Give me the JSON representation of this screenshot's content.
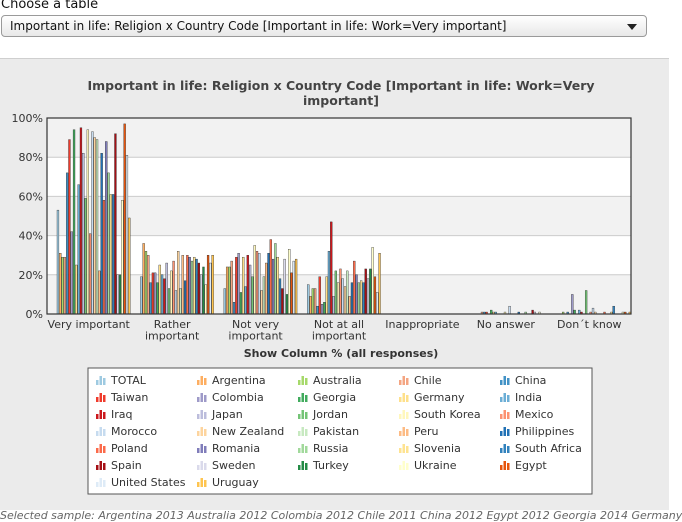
{
  "choose_label": "Choose a table",
  "select": {
    "value": "Important in life: Religion x Country Code [Important in life: Work=Very important]"
  },
  "sample_note": "Selected sample: Argentina 2013 Australia 2012 Colombia 2012 Chile 2011 China 2012 Egypt 2012 Georgia 2014 Germany",
  "colors": {
    "panel_bg": "#ebebeb",
    "plot_bg": "#ffffff",
    "band": "#f2f2f2",
    "title": "#444444",
    "axis_text": "#333333"
  },
  "chart_data": {
    "type": "bar",
    "title": "Important in life: Religion x Country Code [Important in life: Work=Very important]",
    "title_lines": [
      "Important in life: Religion x Country Code [Important in life: Work=Very",
      "important]"
    ],
    "xlabel": "Show Column % (all responses)",
    "ylabel": "",
    "ylim": [
      0,
      100
    ],
    "ytick_labels": [
      "0%",
      "20%",
      "40%",
      "60%",
      "80%",
      "100%"
    ],
    "yticks": [
      0,
      20,
      40,
      60,
      80,
      100
    ],
    "grid": true,
    "legend_position": "bottom",
    "categories": [
      "Very important",
      "Rather important",
      "Not very important",
      "Not at all important",
      "Inappropriate",
      "No answer",
      "Don´t know"
    ],
    "category_label_lines": [
      [
        "Very important"
      ],
      [
        "Rather",
        "important"
      ],
      [
        "Not very",
        "important"
      ],
      [
        "Not at all",
        "important"
      ],
      [
        "Inappropriate"
      ],
      [
        "No answer"
      ],
      [
        "Don´t know"
      ]
    ],
    "series": [
      {
        "name": "TOTAL",
        "color": "#9ecae1",
        "values": [
          53,
          19,
          13,
          15,
          0,
          0,
          0
        ]
      },
      {
        "name": "Argentina",
        "color": "#fdae61",
        "values": [
          31,
          36,
          24,
          9,
          0,
          0,
          0
        ]
      },
      {
        "name": "Australia",
        "color": "#a6d96a",
        "values": [
          29,
          32,
          24,
          13,
          0,
          0,
          1
        ]
      },
      {
        "name": "Chile",
        "color": "#f4a582",
        "values": [
          29,
          30,
          27,
          13,
          0,
          1,
          0
        ]
      },
      {
        "name": "China",
        "color": "#4292c6",
        "values": [
          72,
          16,
          6,
          4,
          0,
          1,
          1
        ]
      },
      {
        "name": "Taiwan",
        "color": "#ef3b2c",
        "values": [
          89,
          21,
          29,
          19,
          0,
          1,
          0
        ]
      },
      {
        "name": "Colombia",
        "color": "#9e9ac8",
        "values": [
          42,
          21,
          31,
          5,
          0,
          0,
          10
        ]
      },
      {
        "name": "Georgia",
        "color": "#41ab5d",
        "values": [
          94,
          16,
          11,
          6,
          0,
          2,
          2
        ]
      },
      {
        "name": "Germany",
        "color": "#fee08b",
        "values": [
          25,
          25,
          29,
          19,
          0,
          1,
          0
        ]
      },
      {
        "name": "India",
        "color": "#6baed6",
        "values": [
          66,
          20,
          14,
          32,
          0,
          1,
          2
        ]
      },
      {
        "name": "Iraq",
        "color": "#cb181d",
        "values": [
          95,
          18,
          30,
          47,
          0,
          0,
          1
        ]
      },
      {
        "name": "Japan",
        "color": "#bcbddc",
        "values": [
          82,
          26,
          25,
          9,
          0,
          0,
          0
        ]
      },
      {
        "name": "Jordan",
        "color": "#74c476",
        "values": [
          59,
          13,
          19,
          22,
          0,
          0,
          12
        ]
      },
      {
        "name": "South Korea",
        "color": "#fff7bc",
        "values": [
          94,
          22,
          35,
          16,
          0,
          1,
          0
        ]
      },
      {
        "name": "Mexico",
        "color": "#fc9272",
        "values": [
          41,
          27,
          32,
          23,
          0,
          0,
          1
        ]
      },
      {
        "name": "Morocco",
        "color": "#c6dbef",
        "values": [
          93,
          12,
          31,
          18,
          0,
          4,
          3
        ]
      },
      {
        "name": "New Zealand",
        "color": "#fdd49e",
        "values": [
          90,
          32,
          12,
          14,
          0,
          0,
          1
        ]
      },
      {
        "name": "Pakistan",
        "color": "#c7e9c0",
        "values": [
          89,
          13,
          19,
          22,
          0,
          0,
          0
        ]
      },
      {
        "name": "Peru",
        "color": "#fdbb84",
        "values": [
          22,
          30,
          26,
          9,
          0,
          0,
          0
        ]
      },
      {
        "name": "Philippines",
        "color": "#2171b5",
        "values": [
          82,
          17,
          31,
          16,
          0,
          1,
          0
        ]
      },
      {
        "name": "Poland",
        "color": "#fb6a4a",
        "values": [
          58,
          30,
          38,
          27,
          0,
          0,
          1
        ]
      },
      {
        "name": "Romania",
        "color": "#807dba",
        "values": [
          88,
          29,
          28,
          20,
          0,
          0,
          0
        ]
      },
      {
        "name": "Russia",
        "color": "#a1d99b",
        "values": [
          72,
          27,
          36,
          16,
          0,
          1,
          0
        ]
      },
      {
        "name": "Slovenia",
        "color": "#fee391",
        "values": [
          61,
          29,
          29,
          17,
          0,
          0,
          1
        ]
      },
      {
        "name": "South Africa",
        "color": "#3182bd",
        "values": [
          61,
          28,
          18,
          16,
          0,
          0,
          4
        ]
      },
      {
        "name": "Spain",
        "color": "#a50f15",
        "values": [
          92,
          26,
          13,
          23,
          0,
          2,
          0
        ]
      },
      {
        "name": "Sweden",
        "color": "#dadaeb",
        "values": [
          20,
          20,
          28,
          18,
          0,
          1,
          0
        ]
      },
      {
        "name": "Turkey",
        "color": "#238b45",
        "values": [
          20,
          24,
          10,
          23,
          0,
          0,
          0
        ]
      },
      {
        "name": "Ukraine",
        "color": "#ffffcc",
        "values": [
          58,
          15,
          33,
          34,
          0,
          1,
          1
        ]
      },
      {
        "name": "Egypt",
        "color": "#e6550d",
        "values": [
          97,
          30,
          21,
          19,
          0,
          0,
          1
        ]
      },
      {
        "name": "United States",
        "color": "#deebf7",
        "values": [
          81,
          26,
          27,
          11,
          0,
          0,
          0
        ]
      },
      {
        "name": "Uruguay",
        "color": "#fec44f",
        "values": [
          49,
          30,
          28,
          31,
          0,
          0,
          1
        ]
      }
    ]
  }
}
